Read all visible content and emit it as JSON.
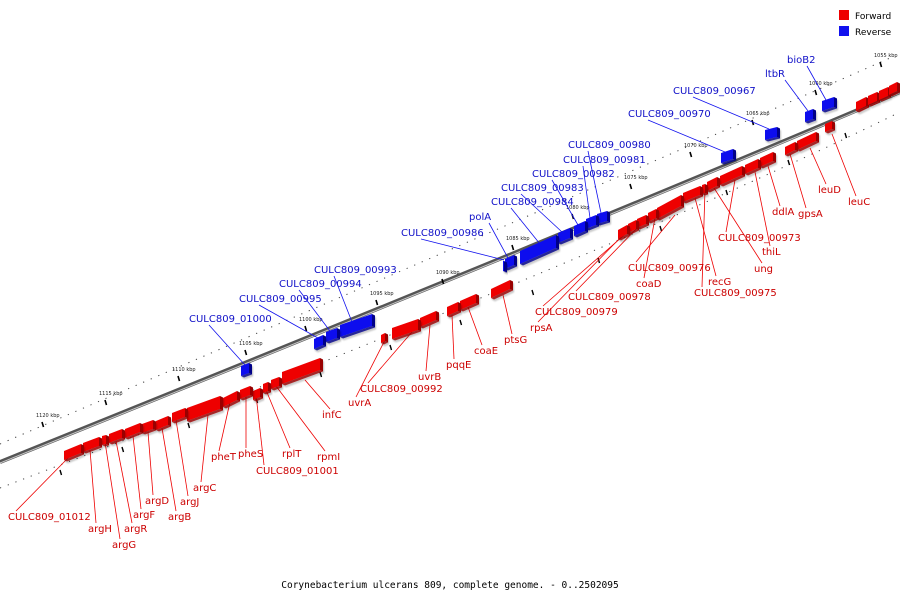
{
  "title": "Corynebacterium ulcerans 809, complete genome. - 0..2502095",
  "colors": {
    "forward": "#ee0000",
    "forward_dark": "#990000",
    "reverse": "#1111ee",
    "reverse_dark": "#000088",
    "backbone": "#777777",
    "forward_label": "#cc0000",
    "reverse_label": "#1010c8"
  },
  "legend": [
    {
      "name": "Forward",
      "strand": "forward"
    },
    {
      "name": "Reverse",
      "strand": "reverse"
    }
  ],
  "scale_unit": "kbp",
  "scale_ticks": [
    1055,
    1060,
    1065,
    1070,
    1075,
    1080,
    1085,
    1090,
    1095,
    1100,
    1105,
    1110,
    1115,
    1120
  ],
  "forward_genes": [
    {
      "name": "leuC"
    },
    {
      "name": "leuD"
    },
    {
      "name": "gpsA"
    },
    {
      "name": "ddlA"
    },
    {
      "name": "thiL"
    },
    {
      "name": "CULC809_00973"
    },
    {
      "name": "ung"
    },
    {
      "name": "CULC809_00975"
    },
    {
      "name": "recG"
    },
    {
      "name": "CULC809_00976"
    },
    {
      "name": "coaD"
    },
    {
      "name": "CULC809_00978"
    },
    {
      "name": "CULC809_00979"
    },
    {
      "name": "rpsA"
    },
    {
      "name": "ptsG"
    },
    {
      "name": "coaE"
    },
    {
      "name": "pqqE"
    },
    {
      "name": "uvrB"
    },
    {
      "name": "CULC809_00992"
    },
    {
      "name": "uvrA"
    },
    {
      "name": "infC"
    },
    {
      "name": "rpmI"
    },
    {
      "name": "rplT"
    },
    {
      "name": "CULC809_01001"
    },
    {
      "name": "pheS"
    },
    {
      "name": "pheT"
    },
    {
      "name": "argC"
    },
    {
      "name": "argJ"
    },
    {
      "name": "argB"
    },
    {
      "name": "argD"
    },
    {
      "name": "argF"
    },
    {
      "name": "argR"
    },
    {
      "name": "argG"
    },
    {
      "name": "argH"
    },
    {
      "name": "CULC809_01012"
    }
  ],
  "reverse_genes": [
    {
      "name": "bioB2"
    },
    {
      "name": "ltbR"
    },
    {
      "name": "CULC809_00967"
    },
    {
      "name": "CULC809_00970"
    },
    {
      "name": "CULC809_00980"
    },
    {
      "name": "CULC809_00981"
    },
    {
      "name": "CULC809_00982"
    },
    {
      "name": "CULC809_00983"
    },
    {
      "name": "CULC809_00984"
    },
    {
      "name": "polA"
    },
    {
      "name": "CULC809_00986"
    },
    {
      "name": "CULC809_00993"
    },
    {
      "name": "CULC809_00994"
    },
    {
      "name": "CULC809_00995"
    },
    {
      "name": "CULC809_01000"
    }
  ]
}
